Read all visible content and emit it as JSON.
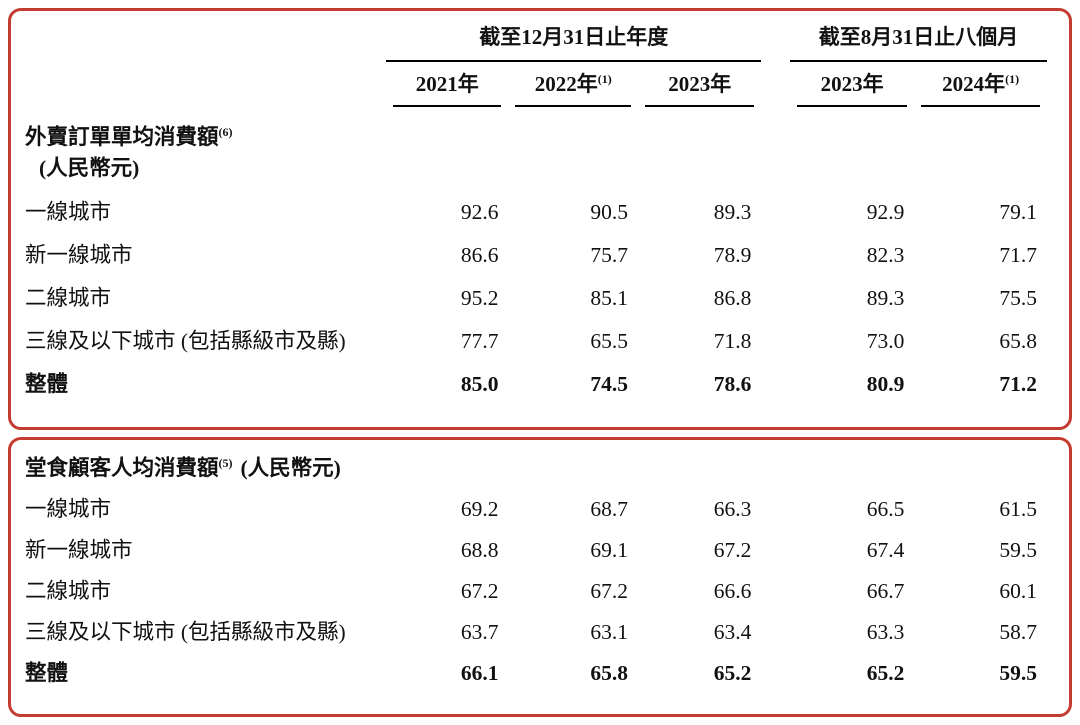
{
  "colors": {
    "border_red": "#c43b31",
    "rule_black": "#000000",
    "text": "#111111",
    "background": "#ffffff"
  },
  "table": {
    "period_groups": [
      {
        "label": "截至12月31日止年度"
      },
      {
        "label": "截至8月31日止八個月"
      }
    ],
    "year_headers": [
      {
        "label": "2021年",
        "sup": ""
      },
      {
        "label": "2022年",
        "sup": "(1)"
      },
      {
        "label": "2023年",
        "sup": ""
      },
      {
        "label": "2023年",
        "sup": ""
      },
      {
        "label": "2024年",
        "sup": "(1)"
      }
    ],
    "sections": [
      {
        "title": "外賣訂單單均消費額",
        "title_sup": "(6)",
        "subtitle": "(人民幣元)",
        "rows": [
          {
            "label": "一線城市",
            "values": [
              "92.6",
              "90.5",
              "89.3",
              "92.9",
              "79.1"
            ]
          },
          {
            "label": "新一線城市",
            "values": [
              "86.6",
              "75.7",
              "78.9",
              "82.3",
              "71.7"
            ]
          },
          {
            "label": "二線城市",
            "values": [
              "95.2",
              "85.1",
              "86.8",
              "89.3",
              "75.5"
            ]
          },
          {
            "label": "三線及以下城市 (包括縣級市及縣)",
            "values": [
              "77.7",
              "65.5",
              "71.8",
              "73.0",
              "65.8"
            ]
          },
          {
            "label": "整體",
            "bold": true,
            "values": [
              "85.0",
              "74.5",
              "78.6",
              "80.9",
              "71.2"
            ]
          }
        ]
      },
      {
        "title": "堂食顧客人均消費額",
        "title_sup": "(5)",
        "subtitle": "(人民幣元)",
        "rows": [
          {
            "label": "一線城市",
            "values": [
              "69.2",
              "68.7",
              "66.3",
              "66.5",
              "61.5"
            ]
          },
          {
            "label": "新一線城市",
            "values": [
              "68.8",
              "69.1",
              "67.2",
              "67.4",
              "59.5"
            ]
          },
          {
            "label": "二線城市",
            "values": [
              "67.2",
              "67.2",
              "66.6",
              "66.7",
              "60.1"
            ]
          },
          {
            "label": "三線及以下城市 (包括縣級市及縣)",
            "values": [
              "63.7",
              "63.1",
              "63.4",
              "63.3",
              "58.7"
            ]
          },
          {
            "label": "整體",
            "bold": true,
            "values": [
              "66.1",
              "65.8",
              "65.2",
              "65.2",
              "59.5"
            ]
          }
        ]
      }
    ]
  }
}
